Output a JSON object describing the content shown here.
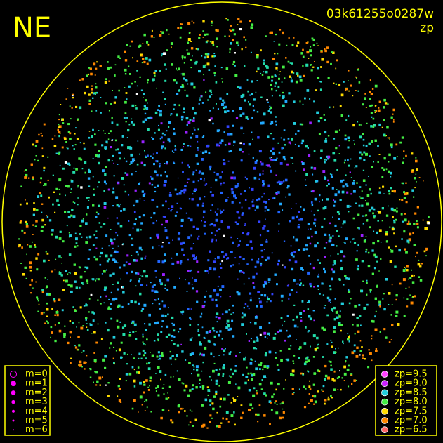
{
  "header": {
    "direction": "NE",
    "frame_id": "03k61255o0287w",
    "mode": "zp"
  },
  "magnitude_legend": {
    "items": [
      "m=0",
      "m=1",
      "m=2",
      "m=3",
      "m=4",
      "m=5",
      "m=6"
    ],
    "color": "#ff00ff"
  },
  "zp_legend": {
    "items": [
      {
        "label": "zp=9.5",
        "color": "#ff44ff"
      },
      {
        "label": "zp=9.0",
        "color": "#cc22ff"
      },
      {
        "label": "zp=8.5",
        "color": "#22ccdd"
      },
      {
        "label": "zp=8.0",
        "color": "#44ee44"
      },
      {
        "label": "zp=7.5",
        "color": "#ffdd00"
      },
      {
        "label": "zp=7.0",
        "color": "#ff8800"
      },
      {
        "label": "zp=6.5",
        "color": "#ff6666"
      }
    ]
  },
  "frame_color": "#ffff00"
}
